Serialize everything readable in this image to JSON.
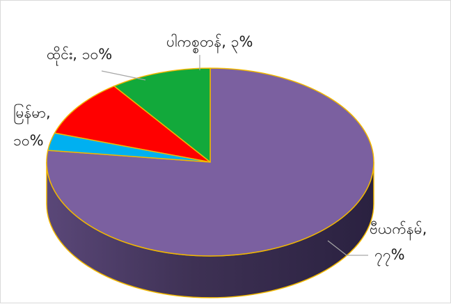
{
  "chart_data": {
    "type": "pie",
    "style": "3d",
    "title": "",
    "start": "12 o'clock, clockwise",
    "slices": [
      {
        "label": "ဗီယက်နမ်",
        "value": 77,
        "data_label": "၇၇%",
        "color": "#7B60A0"
      },
      {
        "label": "မြန်မာ",
        "value": 10,
        "data_label": "၁၀%",
        "color": "#12A93B"
      },
      {
        "label": "ထိုင်း",
        "value": 10,
        "data_label": "၁၀%",
        "color": "#FF0000"
      },
      {
        "label": "ပါကစ္စတန်",
        "value": 3,
        "data_label": "၃%",
        "color": "#00B0F0"
      }
    ],
    "outline_color": "#F2B800",
    "legend": "none"
  }
}
